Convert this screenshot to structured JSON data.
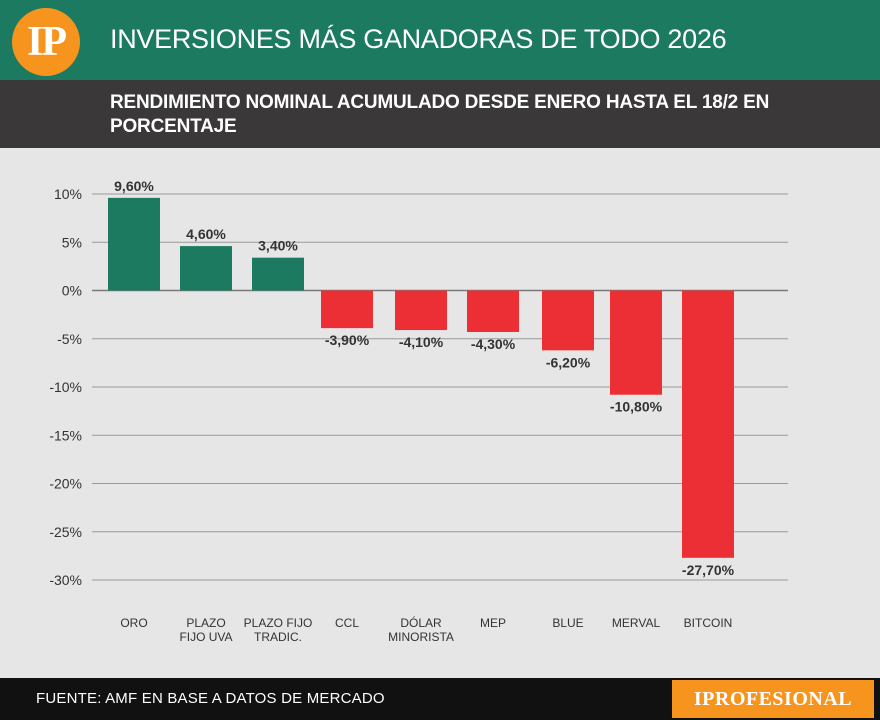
{
  "header": {
    "logo_text": "IP",
    "title": "INVERSIONES MÁS GANADORAS DE TODO 2026",
    "subtitle": "RENDIMIENTO NOMINAL ACUMULADO DESDE ENERO HASTA EL 18/2 EN PORCENTAJE"
  },
  "footer": {
    "source": "FUENTE: AMF EN BASE A DATOS DE MERCADO",
    "brand": "IPROFESIONAL"
  },
  "colors": {
    "header_green": "#1c7a61",
    "positive_bar": "#1c7a61",
    "negative_bar": "#ec2f35",
    "orange": "#f7941e",
    "dark_bar": "#3a3838"
  },
  "chart_data": {
    "type": "bar",
    "title": "RENDIMIENTO NOMINAL ACUMULADO DESDE ENERO HASTA EL 18/2 EN PORCENTAJE",
    "ylabel": "%",
    "xlabel": "",
    "ylim": [
      -30,
      10
    ],
    "yticks": [
      10,
      5,
      0,
      -5,
      -10,
      -15,
      -20,
      -25,
      -30
    ],
    "ytick_labels": [
      "10%",
      "5%",
      "0%",
      "-5%",
      "-10%",
      "-15%",
      "-20%",
      "-25%",
      "-30%"
    ],
    "grid": true,
    "categories": [
      [
        "ORO"
      ],
      [
        "PLAZO",
        "FIJO UVA"
      ],
      [
        "PLAZO FIJO",
        "TRADIC."
      ],
      [
        "CCL"
      ],
      [
        "DÓLAR",
        "MINORISTA"
      ],
      [
        "MEP"
      ],
      [
        "BLUE"
      ],
      [
        "MERVAL"
      ],
      [
        "BITCOIN"
      ]
    ],
    "values": [
      9.6,
      4.6,
      3.4,
      -3.9,
      -4.1,
      -4.3,
      -6.2,
      -10.8,
      -27.7
    ],
    "value_labels": [
      "9,60%",
      "4,60%",
      "3,40%",
      "-3,90%",
      "-4,10%",
      "-4,30%",
      "-6,20%",
      "-10,80%",
      "-27,70%"
    ]
  }
}
